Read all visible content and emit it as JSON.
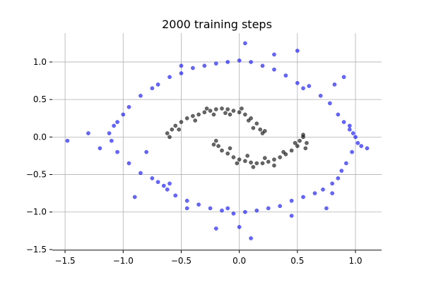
{
  "chart_data": {
    "type": "scatter",
    "title": "2000 training steps",
    "xlim": [
      -1.61,
      1.225
    ],
    "ylim": [
      -1.51,
      1.385
    ],
    "xticks": [
      {
        "value": -1.5,
        "label": "−1.5"
      },
      {
        "value": -1,
        "label": "−1.0"
      },
      {
        "value": -0.5,
        "label": "−0.5"
      },
      {
        "value": 0,
        "label": "0.0"
      },
      {
        "value": 0.5,
        "label": "0.5"
      },
      {
        "value": 1,
        "label": "1.0"
      }
    ],
    "yticks": [
      {
        "value": -1.5,
        "label": "−1.5"
      },
      {
        "value": -1,
        "label": "−1.0"
      },
      {
        "value": -0.5,
        "label": "−0.5"
      },
      {
        "value": 0,
        "label": "0.0"
      },
      {
        "value": 0.5,
        "label": "0.5"
      },
      {
        "value": 1,
        "label": "1.0"
      }
    ],
    "grid": true,
    "series": [
      {
        "color": "#0000ff",
        "x": [
          1.0,
          0.98,
          1.02,
          0.95,
          1.05,
          0.97,
          0.92,
          0.88,
          0.85,
          0.8,
          0.72,
          0.65,
          0.55,
          0.45,
          0.35,
          0.25,
          0.15,
          0.05,
          -0.05,
          -0.15,
          -0.25,
          -0.35,
          -0.45,
          -0.55,
          -0.62,
          -0.65,
          -0.6,
          -0.7,
          -0.75,
          -0.85,
          -0.95,
          -1.05,
          -1.1,
          -1.12,
          -1.08,
          -1.0,
          -0.95,
          -0.85,
          -0.75,
          -0.7,
          -0.6,
          -0.5,
          -0.4,
          -0.3,
          -0.2,
          -0.1,
          0.0,
          0.1,
          0.2,
          0.3,
          0.4,
          0.5,
          0.55,
          0.6,
          0.7,
          0.78,
          0.85,
          0.9,
          0.95,
          -1.48,
          -1.3,
          -1.2,
          -0.8,
          0.1,
          0.0,
          -0.2,
          0.05,
          0.5,
          0.3,
          -0.5,
          0.9,
          0.82,
          0.75,
          -0.9,
          -0.45,
          1.1,
          0.8,
          0.45,
          -0.1,
          -1.05
        ],
        "values": [
          0.0,
          0.05,
          -0.08,
          0.1,
          -0.12,
          -0.2,
          -0.35,
          -0.45,
          -0.55,
          -0.62,
          -0.7,
          -0.75,
          -0.8,
          -0.85,
          -0.92,
          -0.95,
          -0.98,
          -1.0,
          -1.02,
          -0.98,
          -0.95,
          -0.9,
          -0.85,
          -0.78,
          -0.7,
          -0.65,
          -0.62,
          -0.6,
          -0.55,
          -0.48,
          -0.35,
          -0.2,
          -0.05,
          0.05,
          0.15,
          0.3,
          0.4,
          0.55,
          0.65,
          0.7,
          0.8,
          0.85,
          0.92,
          0.95,
          0.98,
          1.0,
          1.02,
          1.0,
          0.95,
          0.9,
          0.82,
          0.72,
          0.65,
          0.68,
          0.55,
          0.45,
          0.3,
          0.2,
          0.15,
          -0.05,
          0.05,
          -0.15,
          -0.2,
          -1.35,
          -1.2,
          -1.22,
          1.25,
          1.15,
          1.1,
          0.95,
          0.8,
          0.7,
          -0.95,
          -0.8,
          -0.95,
          -0.15,
          -0.75,
          -1.05,
          -0.95,
          0.2
        ]
      },
      {
        "color": "#000000",
        "x": [
          -0.6,
          -0.58,
          -0.55,
          -0.5,
          -0.45,
          -0.4,
          -0.35,
          -0.3,
          -0.25,
          -0.2,
          -0.15,
          -0.1,
          -0.05,
          0.0,
          0.05,
          0.1,
          0.15,
          0.18,
          0.2,
          0.22,
          -0.52,
          -0.38,
          -0.22,
          -0.08,
          0.08,
          0.12,
          -0.62,
          -0.28,
          -0.12,
          0.02,
          -0.2,
          -0.18,
          -0.15,
          -0.1,
          -0.05,
          0.0,
          0.05,
          0.1,
          0.15,
          0.2,
          0.25,
          0.3,
          0.35,
          0.4,
          0.45,
          0.5,
          0.52,
          0.55,
          0.58,
          0.55,
          -0.22,
          -0.08,
          0.07,
          0.22,
          0.38,
          0.48,
          -0.02,
          0.12,
          0.3,
          0.57
        ],
        "values": [
          0.0,
          0.1,
          0.15,
          0.2,
          0.25,
          0.28,
          0.3,
          0.33,
          0.35,
          0.37,
          0.38,
          0.37,
          0.35,
          0.33,
          0.3,
          0.25,
          0.18,
          0.1,
          0.05,
          0.08,
          0.1,
          0.22,
          0.3,
          0.3,
          0.22,
          0.12,
          0.05,
          0.38,
          0.32,
          0.38,
          -0.05,
          -0.12,
          -0.18,
          -0.22,
          -0.27,
          -0.3,
          -0.32,
          -0.34,
          -0.35,
          -0.35,
          -0.33,
          -0.3,
          -0.27,
          -0.23,
          -0.18,
          -0.12,
          -0.05,
          0.0,
          -0.08,
          0.03,
          -0.1,
          -0.15,
          -0.25,
          -0.28,
          -0.2,
          -0.08,
          -0.35,
          -0.4,
          -0.38,
          -0.15
        ]
      }
    ]
  }
}
